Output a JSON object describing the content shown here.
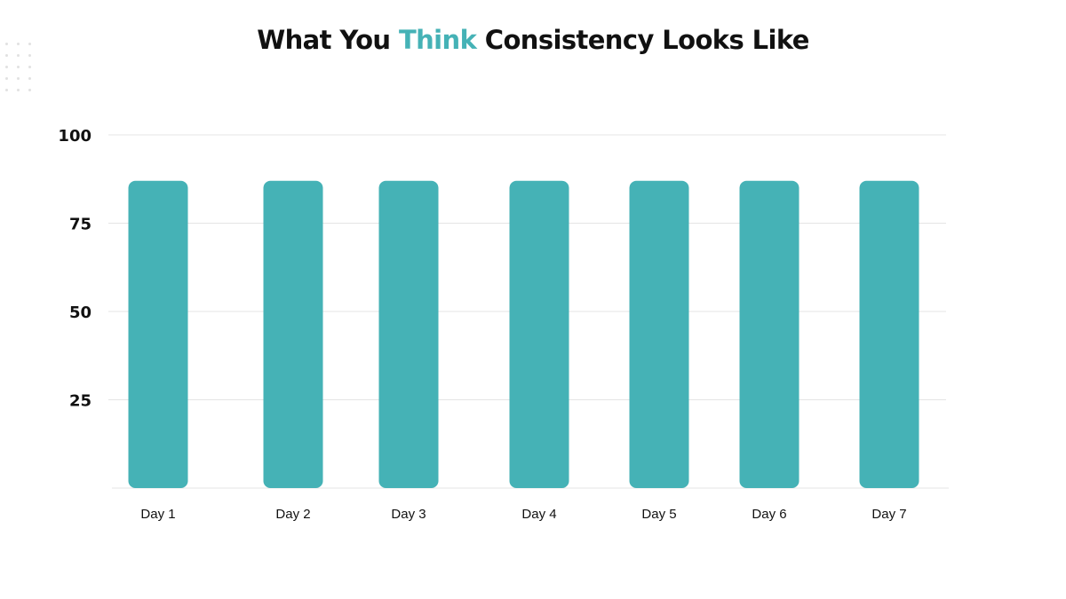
{
  "title": {
    "before": "What You ",
    "highlight": "Think",
    "after": " Consistency Looks Like"
  },
  "colors": {
    "bar": "#45b2b6",
    "highlight": "#45b2b6",
    "text": "#111111",
    "gridline": "#e4e4e4"
  },
  "chart_data": {
    "type": "bar",
    "categories": [
      "Day 1",
      "Day 2",
      "Day 3",
      "Day 4",
      "Day 5",
      "Day 6",
      "Day 7"
    ],
    "values": [
      87,
      87,
      87,
      87,
      87,
      87,
      87
    ],
    "yticks": [
      25,
      50,
      75,
      100
    ],
    "ylim": [
      0,
      100
    ],
    "xlabel": "",
    "ylabel": "",
    "grid": true
  }
}
